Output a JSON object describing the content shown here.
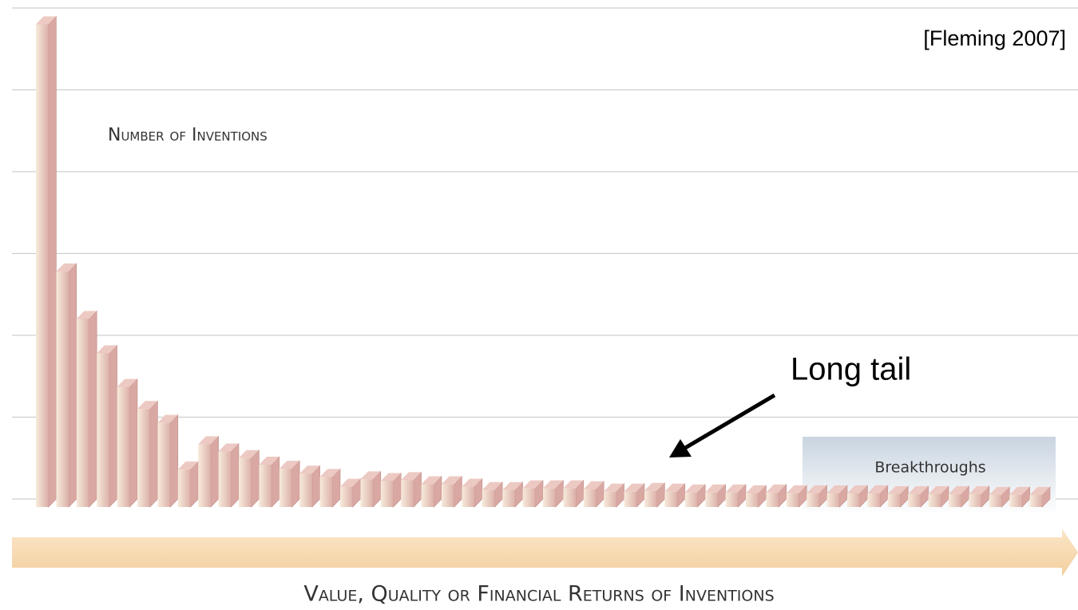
{
  "chart_data": {
    "type": "bar",
    "title": "Number of Inventions",
    "source": "[Fleming 2007]",
    "x_label": "Value, Quality or Financial Returns of Inventions",
    "annotations": [
      "Long tail",
      "Breakthroughs"
    ],
    "categories": [
      null,
      null,
      null,
      null,
      null,
      null,
      null,
      null,
      null,
      null,
      null,
      null,
      null,
      null,
      null,
      null,
      null,
      null,
      null,
      null,
      null,
      null,
      null,
      null,
      null,
      null,
      null,
      null,
      null,
      null,
      null,
      null,
      null,
      null,
      null,
      null,
      null,
      null,
      null,
      null,
      null,
      null,
      null,
      null,
      null,
      null,
      null,
      null,
      null,
      null
    ],
    "values": [
      5.8,
      2.78,
      2.2,
      1.78,
      1.37,
      1.1,
      0.93,
      0.36,
      0.67,
      0.58,
      0.5,
      0.42,
      0.37,
      0.31,
      0.27,
      0.15,
      0.24,
      0.22,
      0.23,
      0.18,
      0.18,
      0.15,
      0.11,
      0.11,
      0.13,
      0.13,
      0.13,
      0.12,
      0.09,
      0.09,
      0.1,
      0.09,
      0.08,
      0.08,
      0.08,
      0.07,
      0.08,
      0.07,
      0.07,
      0.07,
      0.07,
      0.07,
      0.06,
      0.06,
      0.06,
      0.06,
      0.06,
      0.05,
      0.05,
      0.05
    ],
    "color": "#d9a8a3",
    "ylim": [
      0,
      6
    ],
    "yticks": [
      0,
      1,
      2,
      3,
      4,
      5,
      6
    ],
    "grid": true
  }
}
